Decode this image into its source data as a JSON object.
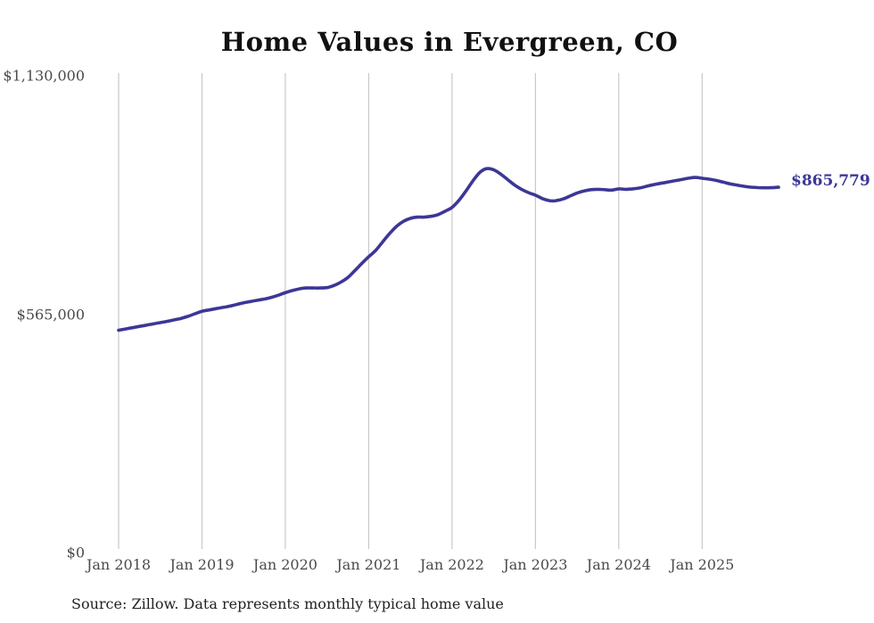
{
  "chart_data": {
    "type": "line",
    "title": "Home Values in Evergreen, CO",
    "source_note": "Source: Zillow. Data represents monthly typical home value",
    "series_name": "Monthly typical home value",
    "line_color": "#3c3796",
    "grid_color": "#c9c9c9",
    "end_label": "$865,779",
    "end_value": 865779,
    "ylim": [
      0,
      1130000
    ],
    "legend": "none",
    "grid": "vertical-only",
    "y_ticks": [
      {
        "label": "$1,130,000",
        "value": 1130000
      },
      {
        "label": "$565,000",
        "value": 565000
      },
      {
        "label": "$0",
        "value": 0
      }
    ],
    "x_ticks": [
      {
        "label": "Jan 2018",
        "month_index": 0
      },
      {
        "label": "Jan 2019",
        "month_index": 12
      },
      {
        "label": "Jan 2020",
        "month_index": 24
      },
      {
        "label": "Jan 2021",
        "month_index": 36
      },
      {
        "label": "Jan 2022",
        "month_index": 48
      },
      {
        "label": "Jan 2023",
        "month_index": 60
      },
      {
        "label": "Jan 2024",
        "month_index": 72
      },
      {
        "label": "Jan 2025",
        "month_index": 84
      }
    ],
    "x_start": "2018-01",
    "x_end": "2025-12",
    "values": [
      527000,
      530000,
      533000,
      536000,
      539000,
      542000,
      545000,
      548000,
      551500,
      555000,
      560000,
      566000,
      572000,
      575000,
      578000,
      581000,
      584000,
      588000,
      592000,
      595000,
      598000,
      601000,
      605000,
      610000,
      616000,
      621000,
      625000,
      627000,
      627000,
      627000,
      628000,
      633000,
      641000,
      652000,
      668000,
      685000,
      701000,
      716000,
      736000,
      756000,
      773000,
      785000,
      792000,
      795000,
      795000,
      797000,
      801000,
      809000,
      818000,
      835000,
      857000,
      881000,
      901000,
      910000,
      907000,
      897000,
      884000,
      871000,
      861000,
      853000,
      847000,
      839000,
      834000,
      834000,
      838000,
      845000,
      852000,
      857000,
      860000,
      861000,
      860000,
      859000,
      862000,
      861000,
      862000,
      864000,
      868000,
      872000,
      875000,
      878000,
      881000,
      884000,
      887000,
      889000,
      887000,
      885000,
      882000,
      878000,
      874000,
      871000,
      868000,
      866000,
      865000,
      864500,
      864800,
      865779
    ]
  }
}
